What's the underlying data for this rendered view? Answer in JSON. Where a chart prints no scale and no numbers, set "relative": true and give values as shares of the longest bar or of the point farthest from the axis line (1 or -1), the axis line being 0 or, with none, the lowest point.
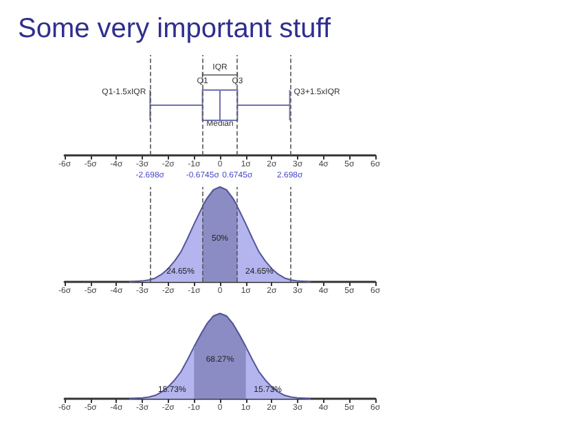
{
  "chart_data": [
    {
      "type": "box",
      "title": "Some very important stuff",
      "orientation": "horizontal",
      "categories": [
        null
      ],
      "boxes": [
        {
          "low": -2.698,
          "q1": -0.6745,
          "median": 0,
          "q3": 0.6745,
          "high": 2.698
        }
      ],
      "color": "#7070b0",
      "xlim": [
        -6,
        6
      ],
      "xticks": [
        {
          "value": -6,
          "label": "-6σ"
        },
        {
          "value": -5,
          "label": "-5σ"
        },
        {
          "value": -4,
          "label": "-4σ"
        },
        {
          "value": -3,
          "label": "-3σ"
        },
        {
          "value": -2,
          "label": "-2σ"
        },
        {
          "value": -1,
          "label": "-1σ"
        },
        {
          "value": 0,
          "label": "0"
        },
        {
          "value": 1,
          "label": "1σ"
        },
        {
          "value": 2,
          "label": "2σ"
        },
        {
          "value": 3,
          "label": "3σ"
        },
        {
          "value": 4,
          "label": "4σ"
        },
        {
          "value": 5,
          "label": "5σ"
        },
        {
          "value": 6,
          "label": "6σ"
        }
      ],
      "ref_lines": [
        {
          "axis": "x",
          "value": -2.698,
          "label": "-2.698σ",
          "line_style": "dashed",
          "color": "#555555"
        },
        {
          "axis": "x",
          "value": -0.6745,
          "label": "-0.6745σ",
          "line_style": "dashed",
          "color": "#555555"
        },
        {
          "axis": "x",
          "value": 0.6745,
          "label": "0.6745σ",
          "line_style": "dashed",
          "color": "#555555"
        },
        {
          "axis": "x",
          "value": 2.698,
          "label": "2.698σ",
          "line_style": "dashed",
          "color": "#555555"
        }
      ],
      "annotations": [
        "IQR",
        {
          "text": "Q1",
          "x": -0.6745
        },
        {
          "text": "Q3",
          "x": 0.6745
        },
        {
          "text": "Median",
          "x": 0
        },
        {
          "text": "Q1-1.5xIQR",
          "x": -2.698
        },
        {
          "text": "Q3+1.5xIQR",
          "x": 2.698
        }
      ],
      "grid": false
    },
    {
      "type": "area",
      "relative": true,
      "tick_labels": "x",
      "series": [
        {
          "color": "#b4b4ee",
          "x": [
            -3.5,
            -3,
            -2.75,
            -2.5,
            -2.25,
            -2,
            -1.75,
            -1.5,
            -1.25,
            -1,
            -0.75,
            -0.5,
            -0.25,
            0,
            0.25,
            0.5,
            0.75,
            1,
            1.25,
            1.5,
            1.75,
            2,
            2.25,
            2.5,
            2.75,
            3,
            3.5
          ],
          "values": [
            0,
            0.01,
            0.02,
            0.04,
            0.08,
            0.14,
            0.22,
            0.32,
            0.46,
            0.61,
            0.75,
            0.88,
            0.97,
            1,
            0.97,
            0.88,
            0.75,
            0.61,
            0.46,
            0.32,
            0.22,
            0.14,
            0.08,
            0.04,
            0.02,
            0.01,
            0
          ]
        },
        {
          "color": "#8c8cc4",
          "x": [
            -0.6745,
            -0.5,
            -0.25,
            0,
            0.25,
            0.5,
            0.6745
          ],
          "values": [
            0.8,
            0.88,
            0.97,
            1,
            0.97,
            0.88,
            0.8
          ]
        }
      ],
      "xlim": [
        -6,
        6
      ],
      "xticks": [
        {
          "value": -6,
          "label": "-6σ"
        },
        {
          "value": -5,
          "label": "-5σ"
        },
        {
          "value": -4,
          "label": "-4σ"
        },
        {
          "value": -3,
          "label": "-3σ"
        },
        {
          "value": -2,
          "label": "-2σ"
        },
        {
          "value": -1,
          "label": "-1σ"
        },
        {
          "value": 0,
          "label": "0"
        },
        {
          "value": 1,
          "label": "1σ"
        },
        {
          "value": 2,
          "label": "2σ"
        },
        {
          "value": 3,
          "label": "3σ"
        },
        {
          "value": 4,
          "label": "4σ"
        },
        {
          "value": 5,
          "label": "5σ"
        },
        {
          "value": 6,
          "label": "6σ"
        }
      ],
      "ref_lines": [
        {
          "axis": "x",
          "value": -2.698,
          "line_style": "dashed",
          "color": "#555555"
        },
        {
          "axis": "x",
          "value": -0.6745,
          "line_style": "dashed",
          "color": "#555555"
        },
        {
          "axis": "x",
          "value": 0.6745,
          "line_style": "dashed",
          "color": "#555555"
        },
        {
          "axis": "x",
          "value": 2.698,
          "line_style": "dashed",
          "color": "#555555"
        }
      ],
      "annotations": [
        "50%",
        "24.65%",
        "24.65%"
      ],
      "grid": false
    },
    {
      "type": "area",
      "relative": true,
      "tick_labels": "x",
      "series": [
        {
          "color": "#b4b4ee",
          "x": [
            -3.5,
            -3,
            -2.75,
            -2.5,
            -2.25,
            -2,
            -1.75,
            -1.5,
            -1.25,
            -1,
            -0.75,
            -0.5,
            -0.25,
            0,
            0.25,
            0.5,
            0.75,
            1,
            1.25,
            1.5,
            1.75,
            2,
            2.25,
            2.5,
            2.75,
            3,
            3.5
          ],
          "values": [
            0,
            0.01,
            0.02,
            0.04,
            0.08,
            0.14,
            0.22,
            0.32,
            0.46,
            0.61,
            0.75,
            0.88,
            0.97,
            1,
            0.97,
            0.88,
            0.75,
            0.61,
            0.46,
            0.32,
            0.22,
            0.14,
            0.08,
            0.04,
            0.02,
            0.01,
            0
          ]
        },
        {
          "color": "#8c8cc4",
          "x": [
            -1,
            -0.75,
            -0.5,
            -0.25,
            0,
            0.25,
            0.5,
            0.75,
            1
          ],
          "values": [
            0.61,
            0.75,
            0.88,
            0.97,
            1,
            0.97,
            0.88,
            0.75,
            0.61
          ]
        }
      ],
      "xlim": [
        -6,
        6
      ],
      "xticks": [
        {
          "value": -6,
          "label": "-6σ"
        },
        {
          "value": -5,
          "label": "-5σ"
        },
        {
          "value": -4,
          "label": "-4σ"
        },
        {
          "value": -3,
          "label": "-3σ"
        },
        {
          "value": -2,
          "label": "-2σ"
        },
        {
          "value": -1,
          "label": "-1σ"
        },
        {
          "value": 0,
          "label": "0"
        },
        {
          "value": 1,
          "label": "1σ"
        },
        {
          "value": 2,
          "label": "2σ"
        },
        {
          "value": 3,
          "label": "3σ"
        },
        {
          "value": 4,
          "label": "4σ"
        },
        {
          "value": 5,
          "label": "5σ"
        },
        {
          "value": 6,
          "label": "6σ"
        }
      ],
      "annotations": [
        "68.27%",
        "15.73%",
        "15.73%"
      ],
      "grid": false
    }
  ]
}
